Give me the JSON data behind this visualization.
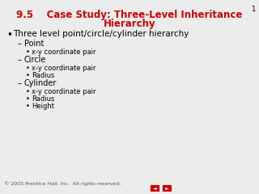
{
  "title_line1": "9.5    Case Study: Three-Level Inheritance",
  "title_line2": "Hierarchy",
  "title_color": "#cc0000",
  "bg_color": "#ececec",
  "slide_number": "1",
  "bullet_main": "Three level point/circle/cylinder hierarchy",
  "items": [
    {
      "level": 1,
      "text": "Point",
      "prefix": "–"
    },
    {
      "level": 2,
      "text": "x-y coordinate pair",
      "prefix": "•"
    },
    {
      "level": 1,
      "text": "Circle",
      "prefix": "–"
    },
    {
      "level": 2,
      "text": "x-y coordinate pair",
      "prefix": "•"
    },
    {
      "level": 2,
      "text": "Radius",
      "prefix": "•"
    },
    {
      "level": 1,
      "text": "Cylinder",
      "prefix": "–"
    },
    {
      "level": 2,
      "text": "x-y coordinate pair",
      "prefix": "•"
    },
    {
      "level": 2,
      "text": "Radius",
      "prefix": "•"
    },
    {
      "level": 2,
      "text": "Height",
      "prefix": "•"
    }
  ],
  "footer_text": "© 2003 Prentice Hall, Inc.  All rights reserved.",
  "nav_button_color": "#cc0000",
  "title_fontsize": 8.5,
  "main_bullet_fontsize": 7.5,
  "sub1_fontsize": 7.0,
  "sub2_fontsize": 6.0,
  "footer_fontsize": 4.5
}
